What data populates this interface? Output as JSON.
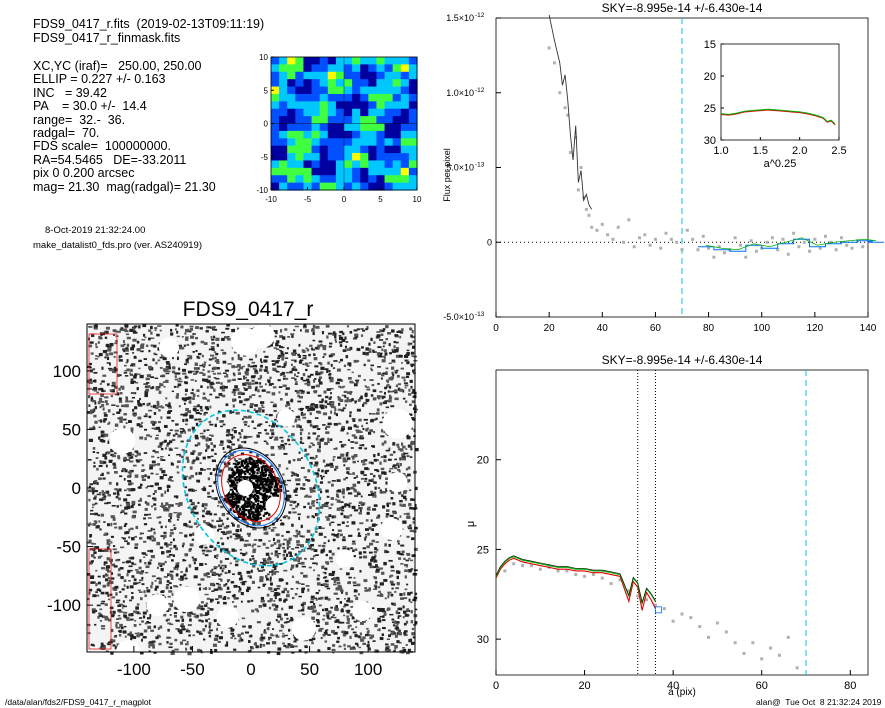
{
  "header": {
    "fits_line": "FDS9_0417_r.fits  (2019-02-13T09:11:19)",
    "mask_line": "FDS9_0417_r_finmask.fits",
    "params": [
      "XC,YC (iraf)=   250.00, 250.00",
      "ELLIP = 0.227 +/- 0.163",
      "INC   = 39.42",
      "PA    = 30.0 +/-  14.4",
      "range=  32.-  36.",
      "radgal=  70.",
      "FDS scale=  100000000.",
      "RA=54.5465   DE=-33.2011",
      "pix 0 0.200 arcsec",
      "mag= 21.30  mag(radgal)= 21.30"
    ],
    "date_line": "8-Oct-2019 21:32:24.00",
    "prog_line": "make_datalist0_fds.pro (ver. AS240919)"
  },
  "footer": {
    "path": "/data/alan/fds2/FDS9_0417_r_magplot",
    "user": "alan@  Tue Oct  8 21:32:24 2019"
  },
  "colors": {
    "sky_line": "#00c8e0",
    "profile_green": "#00b000",
    "profile_red": "#e00000",
    "profile_blue": "#0070ff",
    "points": "#b0b0b0"
  },
  "chart_data": [
    {
      "id": "contour",
      "type": "heatmap",
      "xlim": [
        -10,
        10
      ],
      "ylim": [
        -10,
        10
      ],
      "xticks": [
        "-10",
        "-5",
        "0",
        "5",
        "10"
      ],
      "yticks": [
        "10",
        "5",
        "0",
        "-5",
        "-10"
      ],
      "colormap": [
        "#0000a0",
        "#0050ff",
        "#00c8ff",
        "#40ff40",
        "#ffff00",
        "#ff8000",
        "#e00000"
      ]
    },
    {
      "id": "image",
      "type": "heatmap",
      "title": "FDS9_0417_r",
      "xlim": [
        -140,
        140
      ],
      "ylim": [
        -140,
        140
      ],
      "xticks": [
        "-100",
        "-50",
        "0",
        "50",
        "100"
      ],
      "yticks": [
        "100",
        "50",
        "0",
        "-50",
        "-100"
      ],
      "ellipse_ellip": 0.227,
      "ellipse_pa": 30.0,
      "ellipse_axes": [
        30,
        34,
        36,
        70
      ]
    },
    {
      "id": "flux",
      "type": "line",
      "title": "SKY=-8.995e-14 +/-6.430e-14",
      "ylabel": "Flux per pixel",
      "xlim": [
        0,
        140
      ],
      "ylim": [
        -5e-13,
        1.5e-12
      ],
      "xticks": [
        "0",
        "20",
        "40",
        "60",
        "80",
        "100",
        "120",
        "140"
      ],
      "yticks": [
        {
          "mant": "-5.0×10",
          "exp": "-13"
        },
        {
          "mant": "0",
          "exp": ""
        },
        {
          "mant": "5.0×10",
          "exp": "-13"
        },
        {
          "mant": "1.0×10",
          "exp": "-12"
        },
        {
          "mant": "1.5×10",
          "exp": "-12"
        }
      ],
      "sky_radius": 70,
      "profile": {
        "x": [
          20,
          22,
          24,
          25,
          26,
          27,
          28,
          29,
          30,
          31,
          32,
          33,
          34,
          35,
          36
        ],
        "y": [
          1.52e-12,
          1.35e-12,
          1.2e-12,
          1.05e-12,
          1.12e-12,
          9.5e-13,
          7.2e-13,
          5.5e-13,
          7.8e-13,
          4e-13,
          4.8e-13,
          2.8e-13,
          3.2e-13,
          2.5e-13,
          2.2e-13
        ]
      },
      "points": {
        "x": [
          20,
          22,
          24,
          26,
          27,
          28,
          30,
          31,
          32,
          33,
          34,
          35,
          36,
          38,
          40,
          42,
          44,
          46,
          48,
          50,
          52,
          54,
          56,
          58,
          60,
          62,
          64,
          66,
          68,
          70,
          72,
          74,
          76,
          78,
          80,
          82,
          84,
          86,
          88,
          90,
          92,
          94,
          96,
          98,
          100,
          102,
          104,
          106,
          108,
          110,
          112,
          114,
          116,
          118,
          120,
          122,
          124,
          126,
          128,
          130,
          132,
          134,
          136,
          138
        ],
        "y": [
          1.3e-12,
          1.2e-12,
          1e-12,
          9e-13,
          8.5e-13,
          6e-13,
          7e-13,
          3.5e-13,
          5e-13,
          3e-13,
          2.2e-13,
          1.8e-13,
          1e-13,
          8e-14,
          1.2e-13,
          5e-14,
          2e-14,
          1e-13,
          0.0,
          1.5e-13,
          -3e-14,
          3e-14,
          5e-14,
          -2e-14,
          2e-14,
          -4e-14,
          6e-14,
          2e-14,
          0.0,
          -5e-14,
          8e-14,
          2e-14,
          -5e-14,
          4e-14,
          -4e-14,
          -1e-13,
          -3e-14,
          -7e-14,
          -5e-14,
          3e-14,
          -2e-14,
          -1e-13,
          1e-14,
          -6e-14,
          -4e-14,
          0.0,
          3e-14,
          -5e-14,
          2e-14,
          -8e-14,
          6e-14,
          -3e-14,
          0.0,
          -6e-14,
          2e-14,
          -4e-14,
          4e-14,
          0.0,
          -5e-14,
          3e-14,
          -2e-14,
          -4e-14,
          1e-14,
          -3e-14
        ]
      },
      "binned": {
        "x": [
          76,
          82,
          88,
          94,
          100,
          106,
          112,
          118,
          124,
          130,
          136,
          140
        ],
        "y": [
          -3e-14,
          -5e-14,
          -6e-14,
          -2e-14,
          -4e-14,
          -1e-14,
          2e-14,
          -3e-14,
          -1e-14,
          0.0,
          1e-14,
          0.0
        ]
      }
    },
    {
      "id": "inset",
      "type": "line",
      "xlabel": "a^0.25",
      "xlim": [
        1.0,
        2.5
      ],
      "ylim": [
        30,
        15
      ],
      "xticks": [
        "1.0",
        "1.5",
        "2.0",
        "2.5"
      ],
      "yticks": [
        "15",
        "20",
        "25",
        "30"
      ],
      "x": [
        1.0,
        1.1,
        1.2,
        1.3,
        1.4,
        1.5,
        1.6,
        1.7,
        1.8,
        1.9,
        2.0,
        2.1,
        2.2,
        2.3,
        2.35,
        2.4,
        2.45
      ],
      "y": [
        26.0,
        26.1,
        25.9,
        25.6,
        25.5,
        25.4,
        25.3,
        25.4,
        25.5,
        25.6,
        25.7,
        25.9,
        26.2,
        26.6,
        27.2,
        27.0,
        27.6
      ]
    },
    {
      "id": "mu",
      "type": "line",
      "title": "SKY=-8.995e-14 +/-6.430e-14",
      "xlabel": "a (pix)",
      "ylabel": "μ",
      "xlim": [
        0,
        84
      ],
      "ylim": [
        32,
        15
      ],
      "xticks": [
        "0",
        "20",
        "40",
        "60",
        "80"
      ],
      "yticks": [
        "20",
        "25",
        "30"
      ],
      "range_lines": [
        32,
        36
      ],
      "sky_radius": 70,
      "x": [
        0,
        1,
        2,
        3,
        4,
        5,
        6,
        8,
        10,
        12,
        14,
        16,
        18,
        20,
        22,
        24,
        26,
        28,
        29,
        30,
        31,
        32,
        33,
        34,
        35,
        36
      ],
      "green": [
        26.5,
        26.0,
        25.7,
        25.5,
        25.4,
        25.5,
        25.6,
        25.7,
        25.8,
        25.9,
        26.0,
        26.0,
        26.1,
        26.1,
        26.2,
        26.2,
        26.3,
        26.4,
        27.0,
        27.6,
        26.6,
        26.9,
        28.0,
        27.2,
        27.5,
        27.9
      ],
      "red": [
        26.6,
        26.1,
        25.8,
        25.6,
        25.5,
        25.6,
        25.7,
        25.8,
        25.9,
        26.0,
        26.1,
        26.1,
        26.2,
        26.2,
        26.3,
        26.3,
        26.4,
        26.5,
        27.2,
        27.9,
        26.8,
        27.1,
        28.4,
        27.4,
        27.8,
        28.3
      ],
      "points": {
        "x": [
          2,
          4,
          6,
          8,
          10,
          12,
          14,
          16,
          18,
          20,
          22,
          24,
          26,
          28,
          30,
          32,
          34,
          36,
          38,
          40,
          42,
          44,
          46,
          48,
          50,
          52,
          54,
          56,
          58,
          60,
          62,
          64,
          66,
          68
        ],
        "y": [
          26.2,
          25.8,
          25.9,
          25.9,
          26.1,
          26.0,
          26.2,
          26.2,
          26.4,
          26.5,
          26.4,
          26.6,
          26.9,
          26.7,
          27.3,
          27.6,
          27.8,
          28.1,
          28.3,
          29.0,
          28.6,
          28.8,
          29.3,
          29.9,
          29.1,
          29.6,
          30.2,
          30.8,
          30.2,
          31.1,
          30.5,
          30.9,
          29.9,
          31.6
        ]
      }
    }
  ]
}
